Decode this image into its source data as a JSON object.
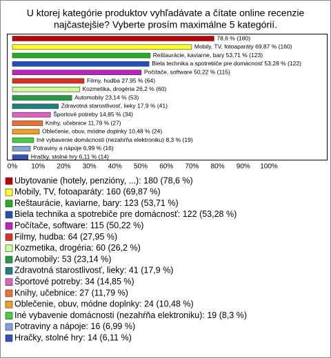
{
  "chart_data": {
    "type": "bar",
    "orientation": "horizontal",
    "title": [
      "U ktorej kategórie produktov vyhľadávate a čítate online recenzie",
      "najčastejšie? Vyberte prosím maximálne 5 kategórií."
    ],
    "values": [
      78.6,
      69.87,
      53.71,
      53.28,
      50.22,
      27.95,
      26.2,
      23.14,
      17.9,
      14.85,
      11.79,
      10.48,
      8.3,
      6.99,
      6.11
    ],
    "value_labels": [
      "78,6 % (180)",
      "Mobily, TV, fotoaparáty 69,87 % (160)",
      "Reštaurácie, kaviarne, bary 53,71 % (123)",
      "Biela technika a spotrebiče pre domácnosť 53,28 % (122)",
      "Počítače, software 50,22 % (115)",
      "Filmy, hudba 27,95 % (64)",
      "Kozmetika, drogéria 26,2 % (60)",
      "Automobily 23,14 % (53)",
      "Zdravotná starostlivosť, lieky 17,9 % (41)",
      "Športové potreby 14,85 % (34)",
      "Knihy, učebnice 11,79 % (27)",
      "Oblečenie, obuv, módne doplnky 10,48 % (24)",
      "Iné vybavenie domácnosti (nezahŕňa elektroniku) 8,3 % (19)",
      "Potraviny a nápoje 6,99 % (16)",
      "Hračky, stolné hry 6,11 % (14)"
    ],
    "legend": [
      "Ubytovanie (hotely, penzióny, ...): 180 (78,6 %)",
      "Mobily, TV, fotoaparáty: 160 (69,87 %)",
      "Reštaurácie, kaviarne, bary: 123 (53,71 %)",
      "Biela technika a spotrebiče pre domácnosť: 122 (53,28 %)",
      "Počítače, software: 115 (50,22 %)",
      "Filmy, hudba: 64 (27,95 %)",
      "Kozmetika, drogéria: 60 (26,2 %)",
      "Automobily: 53 (23,14 %)",
      "Zdravotná starostlivosť, lieky: 41 (17,9 %)",
      "Športové potreby: 34 (14,85 %)",
      "Knihy, učebnice: 27 (11,79 %)",
      "Oblečenie, obuv, módne doplnky: 24 (10,48 %)",
      "Iné vybavenie domácnosti (nezahŕňa elektroniku): 19 (8,3 %)",
      "Potraviny a nápoje: 16 (6,99 %)",
      "Hračky, stolné hry: 14 (6,11 %)"
    ],
    "colors": [
      "#c00000",
      "#ffff20",
      "#20b020",
      "#2050c0",
      "#c020c0",
      "#e03020",
      "#c8ff90",
      "#20a040",
      "#208080",
      "#e060c0",
      "#f07030",
      "#f0a020",
      "#40d040",
      "#80a0e0",
      "#3050c0"
    ],
    "xlim": [
      0,
      100
    ],
    "xticks": [
      {
        "value": 0,
        "label": "0%"
      },
      {
        "value": 10,
        "label": "10%"
      },
      {
        "value": 20,
        "label": "20%"
      },
      {
        "value": 30,
        "label": "30%"
      },
      {
        "value": 40,
        "label": "40%"
      },
      {
        "value": 50,
        "label": "50%"
      },
      {
        "value": 60,
        "label": "60%"
      },
      {
        "value": 70,
        "label": "70%"
      },
      {
        "value": 80,
        "label": "80%"
      },
      {
        "value": 90,
        "label": "90%"
      },
      {
        "value": 100,
        "label": "100%"
      }
    ],
    "grid": false
  }
}
